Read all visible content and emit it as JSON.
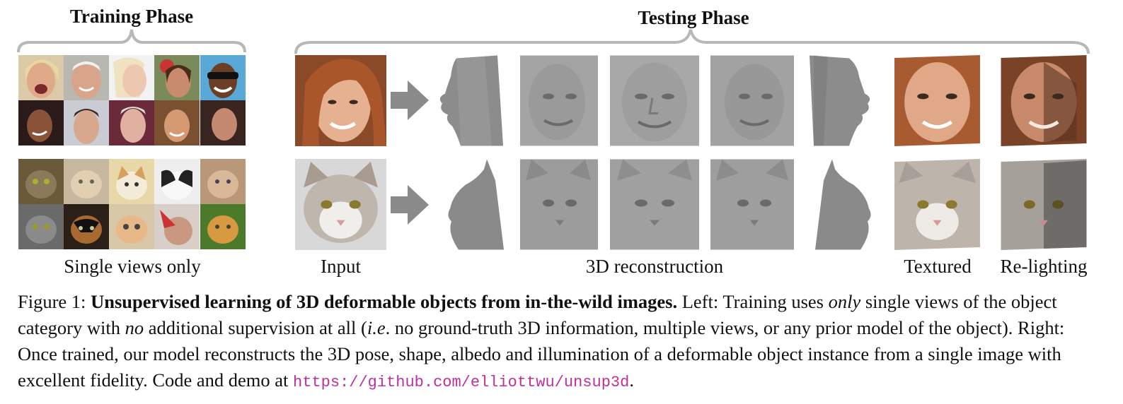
{
  "training": {
    "title": "Training Phase",
    "label": "Single views only",
    "face_tiles": [
      "face-1",
      "face-2",
      "face-3",
      "face-4",
      "face-5",
      "face-6",
      "face-7",
      "face-8",
      "face-9",
      "face-10"
    ],
    "cat_tiles": [
      "cat-1",
      "cat-2",
      "cat-3",
      "cat-4",
      "cat-5",
      "cat-6",
      "cat-7",
      "cat-8",
      "cat-9",
      "cat-10"
    ]
  },
  "testing": {
    "title": "Testing Phase",
    "labels": {
      "input": "Input",
      "reconstruction": "3D reconstruction",
      "textured": "Textured",
      "relighting": "Re-lighting"
    }
  },
  "caption": {
    "prefix": "Figure 1: ",
    "bold": "Unsupervised learning of 3D deformable objects from in-the-wild images.",
    "t1": " Left: Training uses ",
    "em1": "only",
    "t2": " single views of the object category with ",
    "em2": "no",
    "t3": " additional supervision at all (",
    "em3": "i.e",
    "t4": ". no ground-truth 3D information, multiple views, or any prior model of the object). Right: Once trained, our model reconstructs the 3D pose, shape, albedo and illumination of a deformable object instance from a single image with excellent fidelity. Code and demo at ",
    "url": "https://github.com/elliottwu/unsup3d",
    "end": "."
  },
  "colors": {
    "brace": "#b8b8b8",
    "arrow": "#8a8a8a",
    "url": "#c0309a"
  }
}
